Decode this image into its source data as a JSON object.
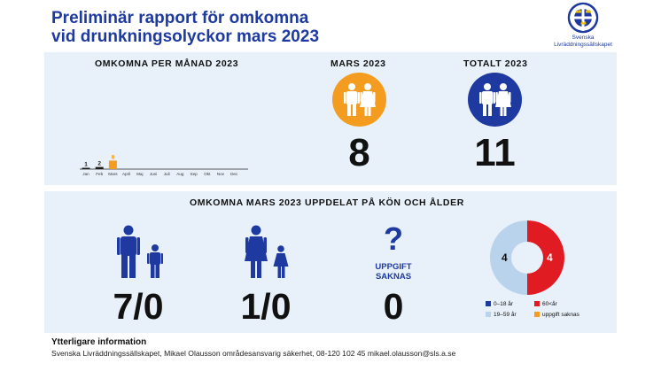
{
  "header": {
    "title_line1": "Preliminär rapport för omkomna",
    "title_line2": "vid drunkningsolyckor mars 2023",
    "logo_line1": "Svenska",
    "logo_line2": "Livräddningssällskapet"
  },
  "monthly": {
    "heading": "OMKOMNA PER MÅNAD 2023"
  },
  "chart_data": {
    "type": "bar",
    "title": "OMKOMNA PER MÅNAD 2023",
    "categories": [
      "Jan",
      "Feb",
      "Mars",
      "April",
      "Maj",
      "Juni",
      "Juli",
      "Aug",
      "Sep",
      "Okt",
      "Nov",
      "Dec"
    ],
    "values": [
      1,
      2,
      8,
      null,
      null,
      null,
      null,
      null,
      null,
      null,
      null,
      null
    ],
    "value_labels": [
      "1",
      "2",
      "8",
      "",
      "",
      "",
      "",
      "",
      "",
      "",
      "",
      ""
    ],
    "highlight_index": 2,
    "colors": {
      "default": "#1a1a1a",
      "highlight": "#f39c1f"
    }
  },
  "march": {
    "heading": "MARS 2023",
    "value": "8",
    "color": "#f39c1f"
  },
  "total": {
    "heading": "TOTALT 2023",
    "value": "11",
    "color": "#1e3aa0"
  },
  "breakdown": {
    "heading": "OMKOMNA MARS 2023 UPPDELAT PÅ KÖN OCH ÅLDER",
    "men_value": "7/0",
    "women_value": "1/0",
    "unknown_label_line1": "UPPGIFT",
    "unknown_label_line2": "SAKNAS",
    "unknown_value": "0",
    "question_mark": "?"
  },
  "donut": {
    "segments": [
      {
        "label": "19–59 år",
        "value": 4,
        "color": "#b9d3ec"
      },
      {
        "label": "60<år",
        "value": 4,
        "color": "#e01b22"
      }
    ],
    "left_label": "4",
    "right_label": "4"
  },
  "legend": [
    {
      "label": "0–18 år",
      "color": "#1e3aa0"
    },
    {
      "label": "60<år",
      "color": "#e01b22"
    },
    {
      "label": "19–59 år",
      "color": "#b9d3ec"
    },
    {
      "label": "uppgift saknas",
      "color": "#f39c1f"
    }
  ],
  "footer": {
    "title": "Ytterligare information",
    "text": "Svenska Livräddningssällskapet, Mikael Olausson områdesansvarig säkerhet, 08-120 102 45 mikael.olausson@sls.a.se"
  },
  "colors": {
    "brand_blue": "#1e3aa0",
    "panel_bg": "#e8f1fa",
    "orange": "#f39c1f",
    "red": "#e01b22",
    "light_blue": "#b9d3ec"
  }
}
